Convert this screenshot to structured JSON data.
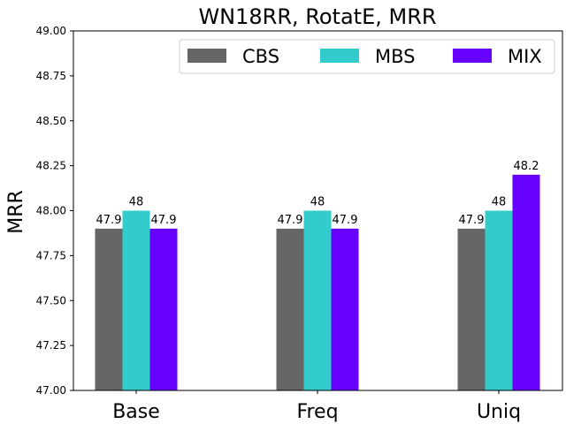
{
  "chart_data": {
    "type": "bar",
    "title": "WN18RR, RotatE, MRR",
    "xlabel": "",
    "ylabel": "MRR",
    "categories": [
      "Base",
      "Freq",
      "Uniq"
    ],
    "ylim": [
      47.0,
      49.0
    ],
    "yticks": [
      "47.00",
      "47.25",
      "47.50",
      "47.75",
      "48.00",
      "48.25",
      "48.50",
      "48.75",
      "49.00"
    ],
    "grid": false,
    "legend_position": "top-right",
    "series": [
      {
        "name": "CBS",
        "color": "#666666",
        "values": [
          47.9,
          47.9,
          47.9
        ],
        "labels": [
          "47.9",
          "47.9",
          "47.9"
        ]
      },
      {
        "name": "MBS",
        "color": "#33cccc",
        "values": [
          48.0,
          48.0,
          48.0
        ],
        "labels": [
          "48",
          "48",
          "48"
        ]
      },
      {
        "name": "MIX",
        "color": "#6600ff",
        "values": [
          47.9,
          47.9,
          48.2
        ],
        "labels": [
          "47.9",
          "47.9",
          "48.2"
        ]
      }
    ]
  }
}
